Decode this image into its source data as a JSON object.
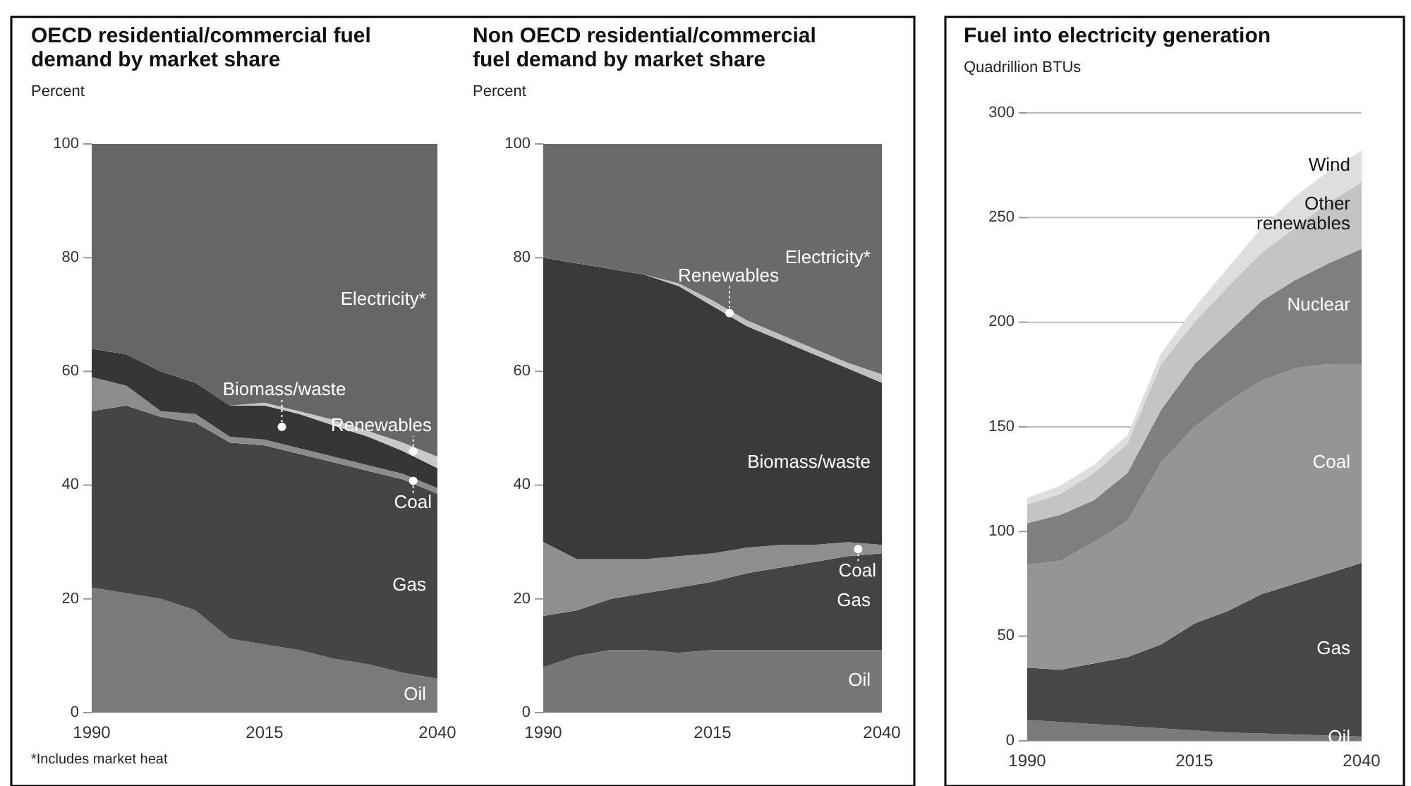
{
  "chart_data": [
    {
      "type": "area",
      "stacked": true,
      "title": "OECD residential/commercial fuel demand by market share",
      "ylabel": "Percent",
      "x": [
        1990,
        1995,
        2000,
        2005,
        2010,
        2015,
        2020,
        2025,
        2030,
        2035,
        2040
      ],
      "xlim": [
        1990,
        2040
      ],
      "xticks": [
        1990,
        2015,
        2040
      ],
      "ylim": [
        0,
        100
      ],
      "yticks": [
        0,
        20,
        40,
        60,
        80,
        100
      ],
      "grid": false,
      "annotations": [
        "*Includes market heat"
      ],
      "series": [
        {
          "name": "Oil",
          "color": "#7a7a7a",
          "values": [
            22,
            21,
            20,
            18,
            13,
            12,
            11,
            9.5,
            8.5,
            7,
            6
          ]
        },
        {
          "name": "Gas",
          "color": "#454545",
          "values": [
            31,
            33,
            32,
            33,
            34.5,
            35,
            34.5,
            34.5,
            34,
            34,
            32.5
          ]
        },
        {
          "name": "Coal",
          "color": "#8c8c8c",
          "values": [
            6,
            3.5,
            1,
            1.5,
            1,
            1,
            1,
            1,
            1,
            1,
            1
          ]
        },
        {
          "name": "Biomass/waste",
          "color": "#363636",
          "values": [
            5,
            5.5,
            7,
            5.5,
            5.5,
            6,
            6,
            5.5,
            5,
            4,
            3.5
          ]
        },
        {
          "name": "Renewables",
          "color": "#c8c8c8",
          "values": [
            0,
            0,
            0,
            0,
            0,
            0.5,
            0.5,
            1,
            1,
            1.5,
            2
          ]
        },
        {
          "name": "Electricity*",
          "color": "#666666",
          "values": [
            36,
            37,
            40,
            42,
            46,
            45.5,
            47,
            48.5,
            50.5,
            52.5,
            55
          ]
        }
      ]
    },
    {
      "type": "area",
      "stacked": true,
      "title": "Non OECD residential/commercial fuel demand by market share",
      "ylabel": "Percent",
      "x": [
        1990,
        1995,
        2000,
        2005,
        2010,
        2015,
        2020,
        2025,
        2030,
        2035,
        2040
      ],
      "xlim": [
        1990,
        2040
      ],
      "xticks": [
        1990,
        2015,
        2040
      ],
      "ylim": [
        0,
        100
      ],
      "yticks": [
        0,
        20,
        40,
        60,
        80,
        100
      ],
      "grid": false,
      "series": [
        {
          "name": "Oil",
          "color": "#777777",
          "values": [
            8,
            10,
            11,
            11,
            10.5,
            11,
            11,
            11,
            11,
            11,
            11
          ]
        },
        {
          "name": "Gas",
          "color": "#444444",
          "values": [
            9,
            8,
            9,
            10,
            11.5,
            12,
            13.5,
            14.5,
            15.5,
            16.5,
            17
          ]
        },
        {
          "name": "Coal",
          "color": "#8e8e8e",
          "values": [
            13,
            9,
            7,
            6,
            5.5,
            5,
            4.5,
            4,
            3,
            2.5,
            1.5
          ]
        },
        {
          "name": "Biomass/waste",
          "color": "#3a3a3a",
          "values": [
            50,
            52,
            51,
            50,
            47.5,
            43.5,
            39,
            36,
            33.5,
            30.5,
            28.5
          ]
        },
        {
          "name": "Renewables",
          "color": "#c0c0c0",
          "values": [
            0,
            0,
            0,
            0,
            0.5,
            1,
            1,
            1,
            1,
            1,
            1.5
          ]
        },
        {
          "name": "Electricity*",
          "color": "#6a6a6a",
          "values": [
            20,
            21,
            22,
            23,
            24.5,
            27.5,
            31,
            33.5,
            36,
            38.5,
            40.5
          ]
        }
      ]
    },
    {
      "type": "area",
      "stacked": true,
      "title": "Fuel into electricity generation",
      "ylabel": "Quadrillion BTUs",
      "x": [
        1990,
        1995,
        2000,
        2005,
        2010,
        2015,
        2020,
        2025,
        2030,
        2035,
        2040
      ],
      "xlim": [
        1990,
        2040
      ],
      "xticks": [
        1990,
        2015,
        2040
      ],
      "ylim": [
        0,
        300
      ],
      "yticks": [
        0,
        50,
        100,
        150,
        200,
        250,
        300
      ],
      "grid": "y",
      "series": [
        {
          "name": "Oil",
          "color": "#7a7a7a",
          "values": [
            10,
            9,
            8,
            7,
            6,
            5,
            4,
            3.5,
            3,
            2.5,
            2
          ]
        },
        {
          "name": "Gas",
          "color": "#474747",
          "values": [
            25,
            25,
            29,
            33,
            40,
            51,
            58,
            66.5,
            72,
            77.5,
            83
          ]
        },
        {
          "name": "Coal",
          "color": "#959595",
          "values": [
            49,
            52,
            58,
            65,
            87,
            94,
            100,
            102,
            103,
            100,
            95
          ]
        },
        {
          "name": "Nuclear",
          "color": "#7f7f7f",
          "values": [
            20,
            22,
            20,
            23,
            25,
            30,
            33,
            38,
            42,
            48,
            55
          ]
        },
        {
          "name": "Other renewables",
          "color": "#c4c4c4",
          "values": [
            9,
            10,
            13,
            14,
            22,
            20,
            22,
            23,
            25,
            29,
            32
          ]
        },
        {
          "name": "Wind",
          "color": "#dedede",
          "values": [
            3,
            4,
            4,
            4,
            5,
            7,
            9,
            12,
            15,
            15,
            15
          ]
        }
      ]
    }
  ]
}
